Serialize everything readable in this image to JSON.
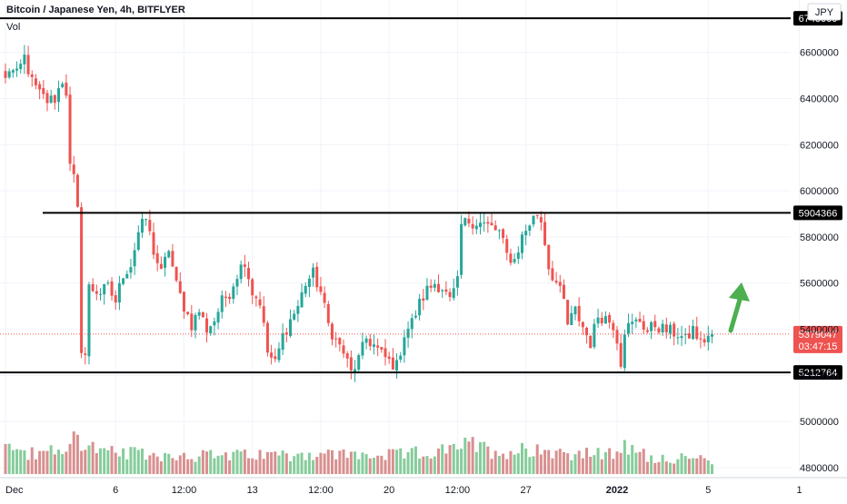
{
  "header": {
    "title": "Bitcoin / Japanese Yen, 4h, BITFLYER",
    "volume_label": "Vol",
    "currency": "JPY"
  },
  "colors": {
    "up": "#26a69a",
    "down": "#ef5350",
    "vol_up": "#86cc9b",
    "vol_down": "#d98f8f",
    "level_line": "#000000",
    "arrow": "#4caf50",
    "grid": "#f0f3fa",
    "axis_text": "#131722",
    "price_tag": "#ef5350"
  },
  "chart_data": {
    "type": "candlestick",
    "title": "Bitcoin / Japanese Yen, 4h, BITFLYER",
    "ylim": [
      4780000,
      6780000
    ],
    "y_ticks": [
      4800000,
      5000000,
      5200000,
      5400000,
      5600000,
      5800000,
      6000000,
      6200000,
      6400000,
      6600000
    ],
    "y_tick_labels": [
      "4800000",
      "5000000",
      "5200000",
      "5400000",
      "5600000",
      "5800000",
      "6000000",
      "6200000",
      "6400000",
      "6600000"
    ],
    "x_ticks": [
      {
        "label": "Dec",
        "bar": 0,
        "bold": false
      },
      {
        "label": "6",
        "bar": 29,
        "bold": false
      },
      {
        "label": "12:00",
        "bar": 47,
        "bold": false
      },
      {
        "label": "13",
        "bar": 65,
        "bold": false
      },
      {
        "label": "12:00",
        "bar": 83,
        "bold": false
      },
      {
        "label": "20",
        "bar": 101,
        "bold": false
      },
      {
        "label": "12:00",
        "bar": 119,
        "bold": false
      },
      {
        "label": "27",
        "bar": 137,
        "bold": false
      },
      {
        "label": "2022",
        "bar": 161,
        "bold": true
      },
      {
        "label": "5",
        "bar": 185,
        "bold": false
      },
      {
        "label": "1",
        "bar": 209,
        "bold": false
      }
    ],
    "levels": [
      {
        "value": 6748000,
        "label": "6748000",
        "partial": true
      },
      {
        "value": 5904366,
        "label": "5904366",
        "partial": false
      },
      {
        "value": 5212764,
        "label": "5212764",
        "partial": false
      }
    ],
    "current_price": {
      "value": 5379047,
      "label": "5379047",
      "countdown": "03:47:15"
    },
    "keyframes": [
      [
        0,
        6480000
      ],
      [
        1,
        6530000
      ],
      [
        3,
        6500000
      ],
      [
        5,
        6580000
      ],
      [
        7,
        6470000
      ],
      [
        9,
        6420000
      ],
      [
        11,
        6390000
      ],
      [
        13,
        6400000
      ],
      [
        15,
        6480000
      ],
      [
        16,
        6430000
      ],
      [
        17,
        6100000
      ],
      [
        18,
        6050000
      ],
      [
        19,
        5910000
      ],
      [
        20,
        5320000
      ],
      [
        21,
        5290000
      ],
      [
        22,
        5580000
      ],
      [
        25,
        5560000
      ],
      [
        27,
        5580000
      ],
      [
        29,
        5520000
      ],
      [
        31,
        5640000
      ],
      [
        33,
        5680000
      ],
      [
        35,
        5820000
      ],
      [
        37,
        5880000
      ],
      [
        39,
        5740000
      ],
      [
        41,
        5640000
      ],
      [
        43,
        5750000
      ],
      [
        45,
        5590000
      ],
      [
        47,
        5500000
      ],
      [
        49,
        5420000
      ],
      [
        51,
        5480000
      ],
      [
        53,
        5400000
      ],
      [
        55,
        5440000
      ],
      [
        57,
        5520000
      ],
      [
        59,
        5560000
      ],
      [
        61,
        5640000
      ],
      [
        63,
        5700000
      ],
      [
        65,
        5560000
      ],
      [
        67,
        5520000
      ],
      [
        69,
        5300000
      ],
      [
        71,
        5250000
      ],
      [
        73,
        5370000
      ],
      [
        75,
        5440000
      ],
      [
        77,
        5500000
      ],
      [
        79,
        5600000
      ],
      [
        81,
        5640000
      ],
      [
        83,
        5560000
      ],
      [
        85,
        5420000
      ],
      [
        87,
        5350000
      ],
      [
        89,
        5300000
      ],
      [
        91,
        5210000
      ],
      [
        93,
        5270000
      ],
      [
        95,
        5360000
      ],
      [
        97,
        5330000
      ],
      [
        99,
        5290000
      ],
      [
        101,
        5260000
      ],
      [
        103,
        5240000
      ],
      [
        105,
        5380000
      ],
      [
        107,
        5430000
      ],
      [
        109,
        5510000
      ],
      [
        111,
        5570000
      ],
      [
        113,
        5600000
      ],
      [
        115,
        5580000
      ],
      [
        117,
        5520000
      ],
      [
        119,
        5600000
      ],
      [
        120,
        5850000
      ],
      [
        122,
        5870000
      ],
      [
        125,
        5860000
      ],
      [
        128,
        5840000
      ],
      [
        130,
        5820000
      ],
      [
        132,
        5720000
      ],
      [
        134,
        5700000
      ],
      [
        136,
        5800000
      ],
      [
        138,
        5860000
      ],
      [
        140,
        5900000
      ],
      [
        141,
        5870000
      ],
      [
        142,
        5780000
      ],
      [
        143,
        5670000
      ],
      [
        145,
        5600000
      ],
      [
        147,
        5520000
      ],
      [
        148,
        5420000
      ],
      [
        150,
        5480000
      ],
      [
        152,
        5410000
      ],
      [
        154,
        5340000
      ],
      [
        156,
        5460000
      ],
      [
        158,
        5450000
      ],
      [
        160,
        5420000
      ],
      [
        161,
        5360000
      ],
      [
        162,
        5260000
      ],
      [
        163,
        5400000
      ],
      [
        165,
        5420000
      ],
      [
        167,
        5440000
      ],
      [
        169,
        5390000
      ],
      [
        171,
        5420000
      ],
      [
        173,
        5400000
      ],
      [
        175,
        5390000
      ],
      [
        177,
        5380000
      ],
      [
        179,
        5350000
      ],
      [
        181,
        5400000
      ],
      [
        183,
        5340000
      ],
      [
        185,
        5370000
      ],
      [
        186,
        5379047
      ]
    ],
    "volume_keyframes": [
      [
        0,
        0.55
      ],
      [
        8,
        0.4
      ],
      [
        17,
        0.55
      ],
      [
        18,
        0.75
      ],
      [
        19,
        1.0
      ],
      [
        20,
        0.7
      ],
      [
        25,
        0.45
      ],
      [
        40,
        0.4
      ],
      [
        60,
        0.38
      ],
      [
        80,
        0.42
      ],
      [
        100,
        0.38
      ],
      [
        119,
        0.5
      ],
      [
        120,
        0.65
      ],
      [
        130,
        0.45
      ],
      [
        140,
        0.55
      ],
      [
        146,
        0.45
      ],
      [
        160,
        0.4
      ],
      [
        161,
        0.6
      ],
      [
        170,
        0.35
      ],
      [
        186,
        0.3
      ]
    ],
    "bars": 187
  }
}
